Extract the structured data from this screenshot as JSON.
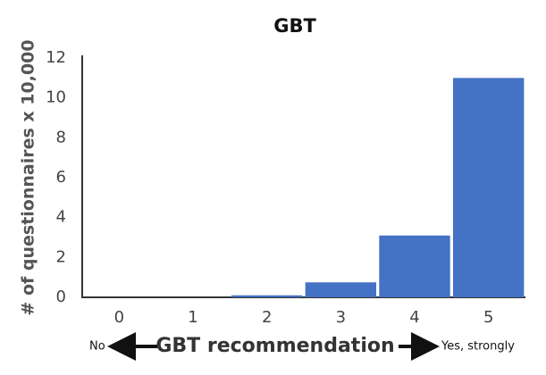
{
  "chart_data": {
    "type": "bar",
    "title": "GBT",
    "xlabel": "GBT recommendation",
    "ylabel": "# of questionnaires x 10,000",
    "annotations": [
      "No",
      "Yes, strongly"
    ],
    "categories": [
      "0",
      "1",
      "2",
      "3",
      "4",
      "5"
    ],
    "values": [
      0,
      0,
      0.1,
      0.75,
      3.1,
      11
    ],
    "color": "#4472c4",
    "ylim": [
      0,
      12
    ],
    "yticks": [
      0,
      2,
      4,
      6,
      8,
      10,
      12
    ],
    "grid": false
  }
}
